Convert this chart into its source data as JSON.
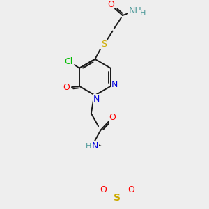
{
  "background_color": "#eeeeee",
  "figsize": [
    3.0,
    3.0
  ],
  "dpi": 100,
  "lw": 1.4,
  "black": "#1a1a1a",
  "colors": {
    "O": "#ff0000",
    "N": "#0000dd",
    "S": "#ccaa00",
    "Cl": "#00bb00",
    "NH": "#4d9999",
    "H": "#4d9999"
  },
  "font_size": 8.5
}
